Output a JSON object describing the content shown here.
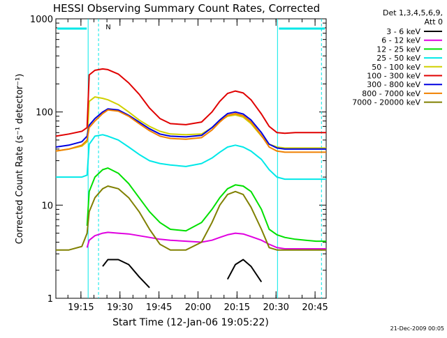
{
  "chart_data": {
    "type": "line",
    "title": "HESSI Observing Summary Count Rates, Corrected",
    "xlabel": "Start Time (12-Jan-06 19:05:22)",
    "ylabel": "Corrected Count Rate (s⁻¹ detector⁻¹)",
    "x_ticks": [
      "19:15",
      "19:30",
      "19:45",
      "20:00",
      "20:15",
      "20:30",
      "20:45"
    ],
    "x_tick_minutes": [
      9.63,
      24.63,
      39.63,
      54.63,
      69.63,
      84.63,
      99.63
    ],
    "xlim_minutes": [
      0,
      103.9
    ],
    "y_scale": "log",
    "ylim": [
      1,
      1000
    ],
    "y_ticks": [
      1,
      10,
      100,
      1000
    ],
    "y_tick_labels": [
      "1",
      "10",
      "100",
      "1000"
    ],
    "legend_title": "Det 1,3,4,5,6,9,\nAtt 0",
    "legend_position": "right",
    "x": [
      0,
      5,
      10,
      12,
      12.8,
      15,
      18,
      20,
      24,
      28,
      32,
      36,
      40,
      44,
      50,
      56,
      60,
      63,
      66,
      69,
      72,
      75,
      79,
      82,
      85,
      88,
      92,
      96,
      100,
      103.9
    ],
    "series": [
      {
        "name": "3 - 6 keV",
        "color": "#000000",
        "values": [
          null,
          null,
          null,
          null,
          null,
          null,
          2.2,
          2.6,
          2.6,
          2.3,
          1.7,
          1.3,
          null,
          null,
          null,
          null,
          null,
          null,
          1.6,
          2.3,
          2.6,
          2.2,
          1.5,
          null,
          null,
          null,
          null,
          null,
          null,
          null
        ]
      },
      {
        "name": "6 - 12 keV",
        "color": "#e000e0",
        "values": [
          null,
          null,
          null,
          3.5,
          4.2,
          4.7,
          5.0,
          5.1,
          5.0,
          4.9,
          4.7,
          4.5,
          4.3,
          4.2,
          4.1,
          4.0,
          4.2,
          4.5,
          4.8,
          5.0,
          4.9,
          4.6,
          4.2,
          3.8,
          3.5,
          3.4,
          3.4,
          3.4,
          3.4,
          3.4
        ]
      },
      {
        "name": "12 - 25 keV",
        "color": "#00e000",
        "values": [
          null,
          null,
          null,
          6.0,
          14,
          20,
          24,
          25,
          22,
          17,
          12,
          8.5,
          6.5,
          5.5,
          5.3,
          6.5,
          9,
          12,
          15,
          16.5,
          16,
          14,
          9,
          5.5,
          4.8,
          4.5,
          4.3,
          4.2,
          4.1,
          4.1
        ]
      },
      {
        "name": "25 - 50 keV",
        "color": "#00e8e8",
        "values": [
          20,
          20,
          20,
          21,
          45,
          55,
          57,
          55,
          50,
          42,
          35,
          30,
          28,
          27,
          26,
          28,
          32,
          37,
          42,
          44,
          42,
          38,
          31,
          24,
          20,
          19,
          19,
          19,
          19,
          19
        ]
      },
      {
        "name": "50 - 100 keV",
        "color": "#d0d000",
        "values": [
          38,
          40,
          43,
          48,
          130,
          145,
          140,
          135,
          120,
          100,
          82,
          70,
          62,
          58,
          57,
          58,
          68,
          80,
          90,
          93,
          88,
          75,
          55,
          45,
          42,
          41,
          41,
          41,
          41,
          41
        ]
      },
      {
        "name": "100 - 300 keV",
        "color": "#e00000",
        "values": [
          55,
          58,
          62,
          68,
          250,
          280,
          290,
          285,
          255,
          205,
          155,
          110,
          85,
          75,
          73,
          78,
          100,
          130,
          158,
          168,
          160,
          135,
          95,
          70,
          60,
          59,
          60,
          60,
          60,
          60
        ]
      },
      {
        "name": "300 - 800 keV",
        "color": "#0000e0",
        "values": [
          42,
          44,
          48,
          55,
          72,
          85,
          100,
          108,
          105,
          92,
          78,
          66,
          58,
          55,
          54,
          56,
          68,
          82,
          96,
          100,
          95,
          82,
          60,
          45,
          41,
          40,
          40,
          40,
          40,
          40
        ]
      },
      {
        "name": "800 - 7000 keV",
        "color": "#f08000",
        "values": [
          38,
          40,
          44,
          50,
          68,
          80,
          96,
          105,
          102,
          90,
          75,
          63,
          55,
          52,
          51,
          53,
          64,
          78,
          92,
          96,
          91,
          78,
          56,
          42,
          38,
          37,
          37,
          37,
          37,
          37
        ]
      },
      {
        "name": "7000 - 20000 keV",
        "color": "#808000",
        "values": [
          3.3,
          3.3,
          3.6,
          5.0,
          8.5,
          12,
          15,
          16,
          15,
          12,
          8.5,
          5.5,
          3.8,
          3.3,
          3.3,
          4.0,
          6.5,
          10,
          13,
          14,
          13,
          9.5,
          5.5,
          3.5,
          3.3,
          3.3,
          3.3,
          3.3,
          3.3,
          3.3
        ]
      }
    ],
    "annotations": {
      "flag_label": "N",
      "timestamp": "21-Dec-2009 00:05",
      "night_intervals_minutes": [
        [
          0,
          12.4
        ],
        [
          85.2,
          103.9
        ]
      ],
      "dashed_lines_minutes": [
        16.4,
        102.1
      ],
      "solid_lines_minutes": [
        12.4,
        85.2
      ]
    }
  }
}
